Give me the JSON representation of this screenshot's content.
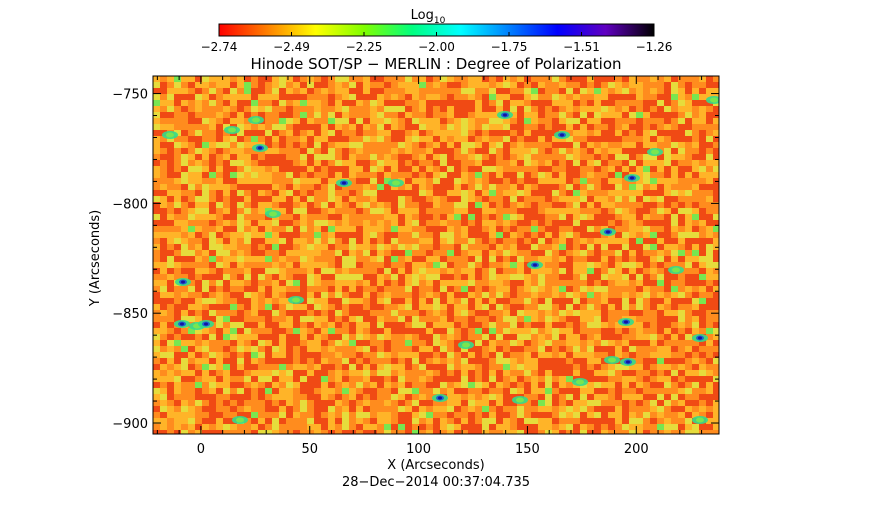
{
  "colorbar": {
    "label": "Log",
    "label_subscript": "10",
    "ticks": [
      "−2.74",
      "−2.49",
      "−2.25",
      "−2.00",
      "−1.75",
      "−1.51",
      "−1.26"
    ],
    "range": [
      -2.74,
      -1.26
    ],
    "colormap": [
      "#ff0000",
      "#ff8000",
      "#ffff00",
      "#80ff00",
      "#00ff80",
      "#00ffff",
      "#0080ff",
      "#0000ff",
      "#6000c0",
      "#000000"
    ]
  },
  "plot": {
    "title": "Hinode SOT/SP − MERLIN : Degree of Polarization",
    "xlabel": "X (Arcseconds)",
    "ylabel": "Y (Arcseconds)",
    "xlim": [
      -22,
      238
    ],
    "ylim": [
      -905,
      -742
    ],
    "xticks": [
      0,
      50,
      100,
      150,
      200
    ],
    "yticks": [
      -750,
      -800,
      -850,
      -900
    ],
    "xtick_labels": [
      "0",
      "50",
      "100",
      "150",
      "200"
    ],
    "ytick_labels": [
      "−750",
      "−800",
      "−850",
      "−900"
    ],
    "map_colors": {
      "background": "#f0781e",
      "dominant": [
        "#f04a14",
        "#ff8c1e",
        "#ffb428",
        "#e6dc3c"
      ],
      "features": [
        "#78e650",
        "#32dc8c",
        "#1e64d2",
        "#1414a0"
      ]
    }
  },
  "timestamp": "28−Dec−2014 00:37:04.735"
}
